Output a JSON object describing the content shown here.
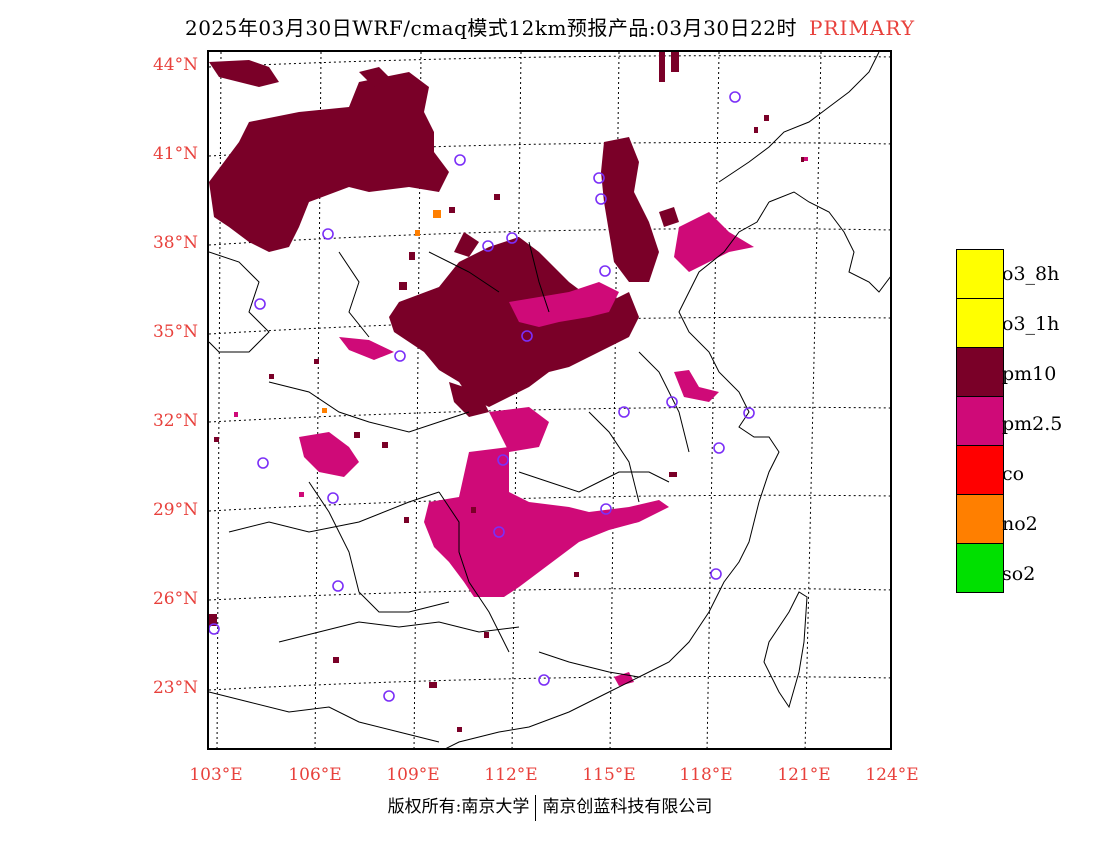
{
  "title": {
    "main": "2025年03月30日WRF/cmaq模式12km预报产品:03月30日22时",
    "tag": "PRIMARY"
  },
  "axes": {
    "y_ticks": [
      "44°N",
      "41°N",
      "38°N",
      "35°N",
      "32°N",
      "29°N",
      "26°N",
      "23°N"
    ],
    "x_ticks": [
      "103°E",
      "106°E",
      "109°E",
      "112°E",
      "115°E",
      "118°E",
      "121°E",
      "124°E"
    ]
  },
  "legend": {
    "items": [
      {
        "label": "o3_8h",
        "color": "#ffff00"
      },
      {
        "label": "o3_1h",
        "color": "#ffff00"
      },
      {
        "label": "pm10",
        "color": "#7a0028"
      },
      {
        "label": "pm2.5",
        "color": "#cf0a78"
      },
      {
        "label": "co",
        "color": "#ff0000"
      },
      {
        "label": "no2",
        "color": "#ff7f00"
      },
      {
        "label": "so2",
        "color": "#00e000"
      }
    ]
  },
  "colors": {
    "pm10": "#7a0028",
    "pm2_5": "#cf0a78",
    "no2": "#ff7f00",
    "station": "#7b2ff7",
    "tick_text": "#e8413c"
  },
  "footer": {
    "left": "版权所有:南京大学",
    "right": "南京创蓝科技有限公司"
  }
}
